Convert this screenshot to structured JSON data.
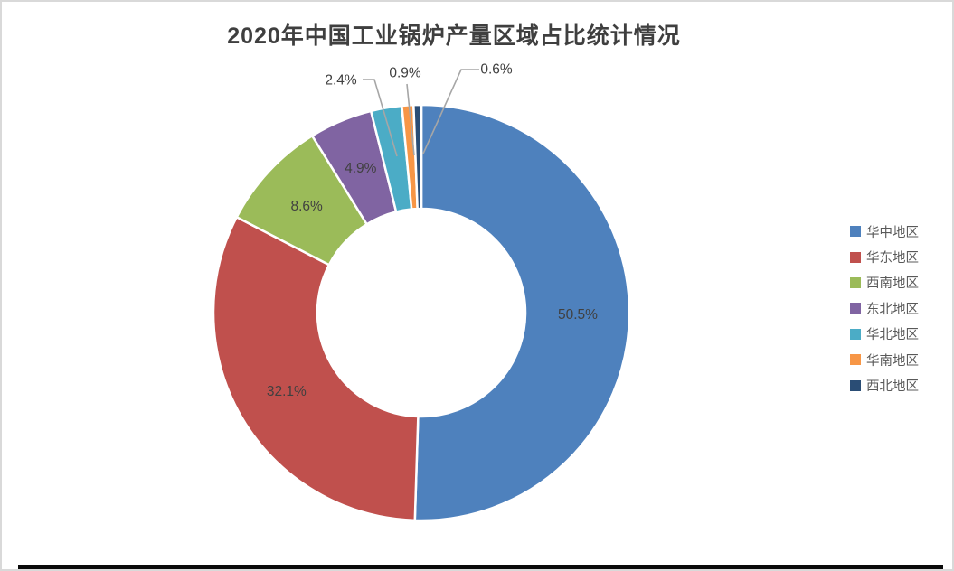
{
  "page": {
    "background": "#FFFFFF",
    "frame_border_color": "#D9D9D9",
    "bottom_bar_color": "#0A0A0A"
  },
  "chart_data": {
    "type": "pie",
    "subtype": "doughnut",
    "title": "2020年中国工业锅炉产量区域占比统计情况",
    "categories": [
      "华中地区",
      "华东地区",
      "西南地区",
      "东北地区",
      "华北地区",
      "华南地区",
      "西北地区"
    ],
    "values": [
      50.5,
      32.1,
      8.6,
      4.9,
      2.4,
      0.9,
      0.6
    ],
    "labels": [
      "50.5%",
      "32.1%",
      "8.6%",
      "4.9%",
      "2.4%",
      "0.9%",
      "0.6%"
    ],
    "colors": [
      "#4E81BD",
      "#C0504D",
      "#9BBB59",
      "#8064A2",
      "#4BACC6",
      "#F79646",
      "#2A4D75"
    ],
    "start_angle_deg": 0,
    "direction": "clockwise",
    "hole_ratio": 0.5,
    "slice_border_color": "#FFFFFF",
    "label_text_color": "#404040",
    "leader_line_color": "#A6A6A6",
    "legend_position": "right",
    "title_color": "#3F3F3F"
  },
  "legend": {
    "items": [
      {
        "label": "华中地区",
        "color": "#4E81BD"
      },
      {
        "label": "华东地区",
        "color": "#C0504D"
      },
      {
        "label": "西南地区",
        "color": "#9BBB59"
      },
      {
        "label": "东北地区",
        "color": "#8064A2"
      },
      {
        "label": "华北地区",
        "color": "#4BACC6"
      },
      {
        "label": "华南地区",
        "color": "#F79646"
      },
      {
        "label": "西北地区",
        "color": "#2A4D75"
      }
    ]
  }
}
